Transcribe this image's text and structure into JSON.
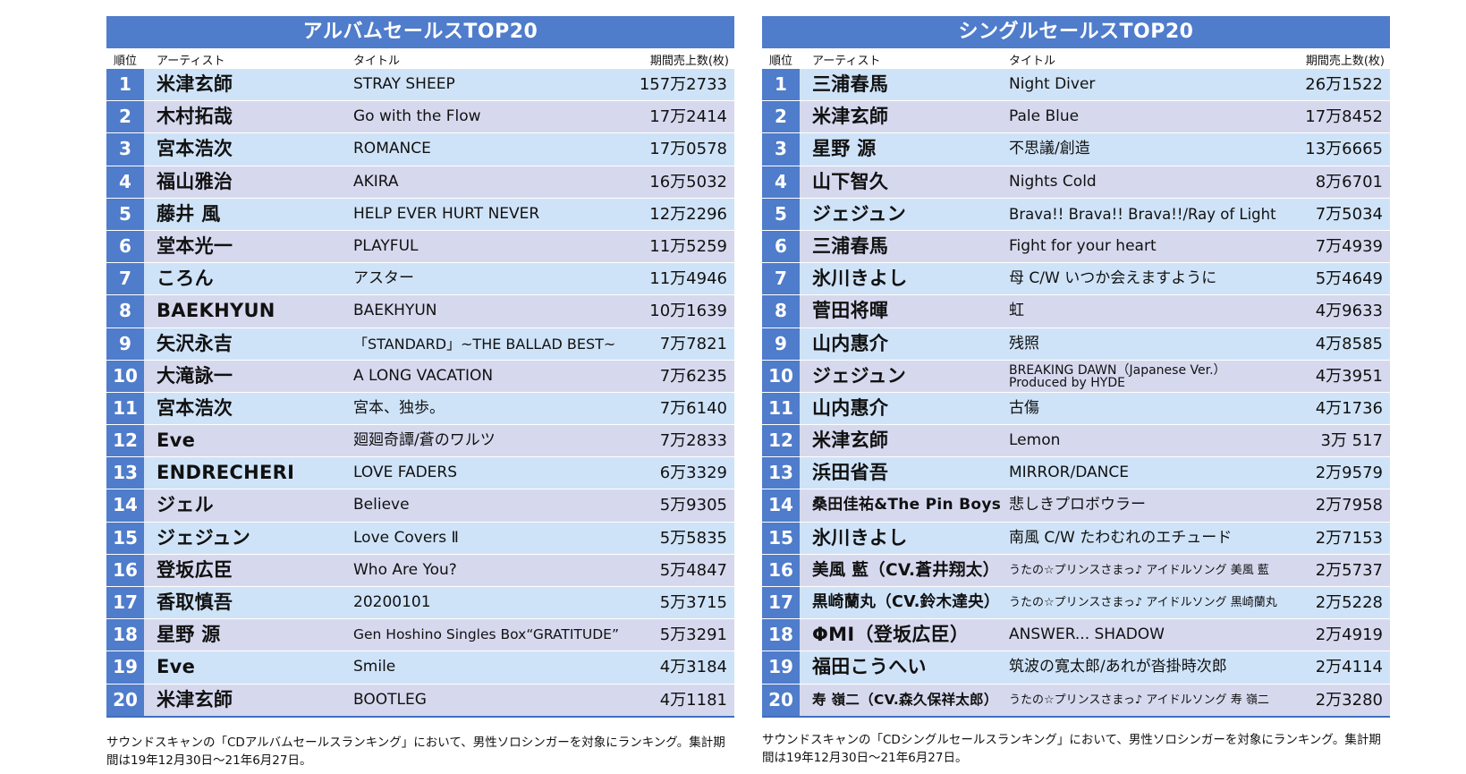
{
  "album": {
    "title": "アルバムセールスTOP20",
    "headers": {
      "rank": "順位",
      "artist": "アーティスト",
      "title": "タイトル",
      "sales": "期間売上数(枚)"
    },
    "rows": [
      {
        "rank": "1",
        "artist": "米津玄師",
        "title": "STRAY SHEEP",
        "sales": "157万2733"
      },
      {
        "rank": "2",
        "artist": "木村拓哉",
        "title": "Go with the Flow",
        "sales": "17万2414"
      },
      {
        "rank": "3",
        "artist": "宮本浩次",
        "title": "ROMANCE",
        "sales": "17万0578"
      },
      {
        "rank": "4",
        "artist": "福山雅治",
        "title": "AKIRA",
        "sales": "16万5032"
      },
      {
        "rank": "5",
        "artist": "藤井 風",
        "title": "HELP EVER HURT NEVER",
        "sales": "12万2296"
      },
      {
        "rank": "6",
        "artist": "堂本光一",
        "title": "PLAYFUL",
        "sales": "11万5259"
      },
      {
        "rank": "7",
        "artist": "ころん",
        "title": "アスター",
        "sales": "11万4946"
      },
      {
        "rank": "8",
        "artist": "BAEKHYUN",
        "title": "BAEKHYUN",
        "sales": "10万1639"
      },
      {
        "rank": "9",
        "artist": "矢沢永吉",
        "title": "「STANDARD」~THE BALLAD BEST~",
        "sales": "7万7821"
      },
      {
        "rank": "10",
        "artist": "大滝詠一",
        "title": "A LONG VACATION",
        "sales": "7万6235"
      },
      {
        "rank": "11",
        "artist": "宮本浩次",
        "title": "宮本、独歩。",
        "sales": "7万6140"
      },
      {
        "rank": "12",
        "artist": "Eve",
        "title": "廻廻奇譚/蒼のワルツ",
        "sales": "7万2833"
      },
      {
        "rank": "13",
        "artist": "ENDRECHERI",
        "title": "LOVE FADERS",
        "sales": "6万3329"
      },
      {
        "rank": "14",
        "artist": "ジェル",
        "title": "Believe",
        "sales": "5万9305"
      },
      {
        "rank": "15",
        "artist": "ジェジュン",
        "title": "Love Covers Ⅱ",
        "sales": "5万5835"
      },
      {
        "rank": "16",
        "artist": "登坂広臣",
        "title": "Who Are You?",
        "sales": "5万4847"
      },
      {
        "rank": "17",
        "artist": "香取慎吾",
        "title": "20200101",
        "sales": "5万3715"
      },
      {
        "rank": "18",
        "artist": "星野 源",
        "title": "Gen Hoshino Singles Box“GRATITUDE”",
        "sales": "5万3291"
      },
      {
        "rank": "19",
        "artist": "Eve",
        "title": "Smile",
        "sales": "4万3184"
      },
      {
        "rank": "20",
        "artist": "米津玄師",
        "title": "BOOTLEG",
        "sales": "4万1181"
      }
    ],
    "note": "サウンドスキャンの「CDアルバムセールスランキング」において、男性ソロシンガーを対象にランキング。集計期間は19年12月30日〜21年6月27日。"
  },
  "single": {
    "title": "シングルセールスTOP20",
    "headers": {
      "rank": "順位",
      "artist": "アーティスト",
      "title": "タイトル",
      "sales": "期間売上数(枚)"
    },
    "rows": [
      {
        "rank": "1",
        "artist": "三浦春馬",
        "title": "Night Diver",
        "sales": "26万1522"
      },
      {
        "rank": "2",
        "artist": "米津玄師",
        "title": "Pale Blue",
        "sales": "17万8452"
      },
      {
        "rank": "3",
        "artist": "星野 源",
        "title": "不思議/創造",
        "sales": "13万6665"
      },
      {
        "rank": "4",
        "artist": "山下智久",
        "title": "Nights Cold",
        "sales": "8万6701"
      },
      {
        "rank": "5",
        "artist": "ジェジュン",
        "title": "Brava!! Brava!! Brava!!/Ray of Light",
        "sales": "7万5034"
      },
      {
        "rank": "6",
        "artist": "三浦春馬",
        "title": "Fight for your heart",
        "sales": "7万4939"
      },
      {
        "rank": "7",
        "artist": "氷川きよし",
        "title": "母 C/W いつか会えますように",
        "sales": "5万4649"
      },
      {
        "rank": "8",
        "artist": "菅田将暉",
        "title": "虹",
        "sales": "4万9633"
      },
      {
        "rank": "9",
        "artist": "山内惠介",
        "title": "残照",
        "sales": "4万8585"
      },
      {
        "rank": "10",
        "artist": "ジェジュン",
        "title": "BREAKING DAWN（Japanese Ver.）\nProduced by HYDE",
        "sales": "4万3951"
      },
      {
        "rank": "11",
        "artist": "山内惠介",
        "title": "古傷",
        "sales": "4万1736"
      },
      {
        "rank": "12",
        "artist": "米津玄師",
        "title": "Lemon",
        "sales": "3万 517"
      },
      {
        "rank": "13",
        "artist": "浜田省吾",
        "title": "MIRROR/DANCE",
        "sales": "2万9579"
      },
      {
        "rank": "14",
        "artist": "桑田佳祐&The Pin Boys",
        "title": "悲しきプロボウラー",
        "sales": "2万7958"
      },
      {
        "rank": "15",
        "artist": "氷川きよし",
        "title": "南風 C/W たわむれのエチュード",
        "sales": "2万7153"
      },
      {
        "rank": "16",
        "artist": "美風 藍（CV.蒼井翔太）",
        "title": "うたの☆プリンスさまっ♪ アイドルソング 美風 藍",
        "sales": "2万5737"
      },
      {
        "rank": "17",
        "artist": "黒崎蘭丸（CV.鈴木達央）",
        "title": "うたの☆プリンスさまっ♪ アイドルソング 黒崎蘭丸",
        "sales": "2万5228"
      },
      {
        "rank": "18",
        "artist": "ΦMI（登坂広臣）",
        "title": "ANSWER... SHADOW",
        "sales": "2万4919"
      },
      {
        "rank": "19",
        "artist": "福田こうへい",
        "title": "筑波の寛太郎/あれが沓掛時次郎",
        "sales": "2万4114"
      },
      {
        "rank": "20",
        "artist": "寿 嶺二（CV.森久保祥太郎）",
        "title": "うたの☆プリンスさまっ♪ アイドルソング 寿 嶺二",
        "sales": "2万3280"
      }
    ],
    "note": "サウンドスキャンの「CDシングルセールスランキング」において、男性ソロシンガーを対象にランキング。集計期間は19年12月30日〜21年6月27日。"
  }
}
